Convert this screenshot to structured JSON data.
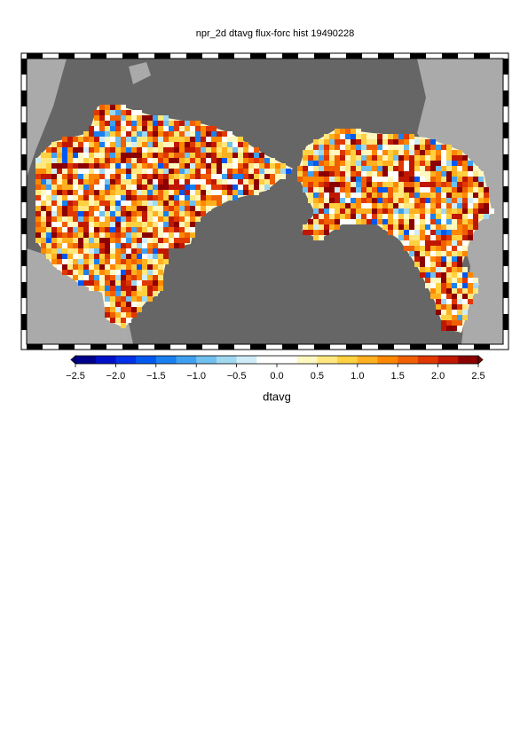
{
  "title": "npr_2d dtavg flux-forc hist 19490228",
  "colorbar": {
    "label": "dtavg",
    "lim": [
      -2.5,
      2.5
    ],
    "ticks": [
      {
        "value": -2.5,
        "label": "−2.5"
      },
      {
        "value": -2.0,
        "label": "−2.0"
      },
      {
        "value": -1.5,
        "label": "−1.5"
      },
      {
        "value": -1.0,
        "label": "−1.0"
      },
      {
        "value": -0.5,
        "label": "−0.5"
      },
      {
        "value": 0,
        "label": "0.0"
      },
      0.5,
      {
        "value": 1.0,
        "label": "1.0"
      },
      1.5,
      {
        "value": 2.0,
        "label": "2.0"
      },
      2.5
    ],
    "colors": [
      "#00008b",
      "#0010c8",
      "#0030e8",
      "#0058f0",
      "#1a80f0",
      "#40a0f0",
      "#70c0f0",
      "#a0d8f0",
      "#d0ecf8",
      "#ffffff",
      "#ffffff",
      "#fff8c0",
      "#ffe880",
      "#ffd040",
      "#ffb020",
      "#ff8800",
      "#f06000",
      "#e03800",
      "#c01800",
      "#8b0000"
    ]
  }
}
